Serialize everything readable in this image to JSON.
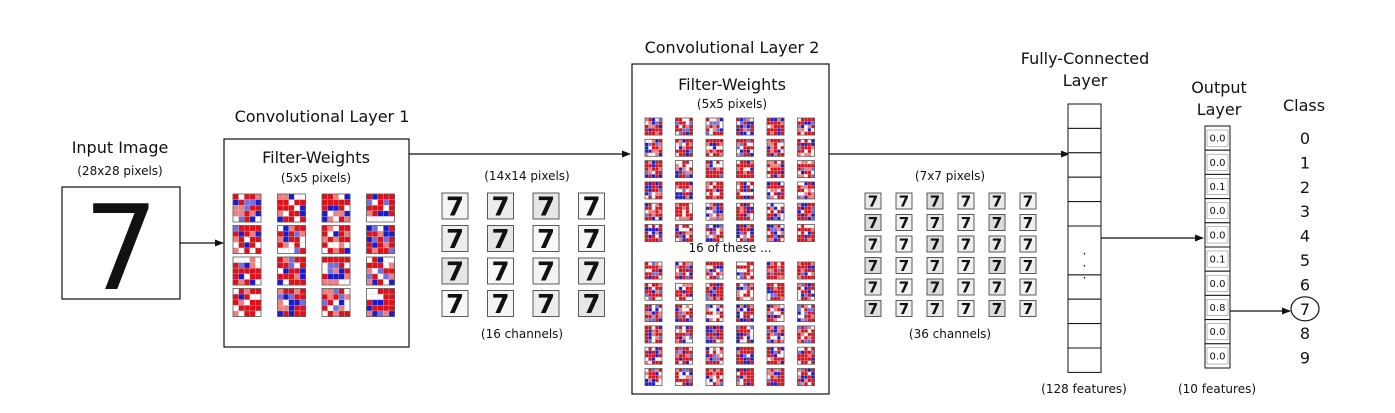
{
  "input": {
    "title": "Input Image",
    "size": "(28x28 pixels)",
    "digit": "7"
  },
  "conv1": {
    "title": "Convolutional Layer 1",
    "filter_title": "Filter-Weights",
    "filter_size": "5x5 pixels)",
    "filter_size_open": "(",
    "filter_size_full": "(5x5 pixels)",
    "output_size": "(14x14 pixels)",
    "output_channels": "(16 channels)",
    "digit": "7"
  },
  "conv2": {
    "title": "Convolutional Layer 2",
    "filter_title": "Filter-Weights",
    "filter_size_full": "(5x5 pixels)",
    "repeat_note": "16 of these ...",
    "output_size": "(7x7 pixels)",
    "output_channels": "(36 channels)",
    "digit": "7"
  },
  "fc": {
    "title_line1": "Fully-Connected",
    "title_line2": "Layer",
    "features": "(128 features)",
    "ellipsis": "·"
  },
  "output": {
    "title_line1": "Output",
    "title_line2": "Layer",
    "features": "(10 features)",
    "values": [
      "0.0",
      "0.0",
      "0.1",
      "0.0",
      "0.0",
      "0.1",
      "0.0",
      "0.8",
      "0.0",
      "0.0"
    ]
  },
  "class": {
    "title": "Class",
    "labels": [
      "0",
      "1",
      "2",
      "3",
      "4",
      "5",
      "6",
      "7",
      "8",
      "9"
    ],
    "predicted_index": 7
  },
  "colors": {
    "weight_positive": "#e0101a",
    "weight_negative": "#1a1ad0",
    "weight_neutral": "#ffffff",
    "line": "#111111"
  }
}
